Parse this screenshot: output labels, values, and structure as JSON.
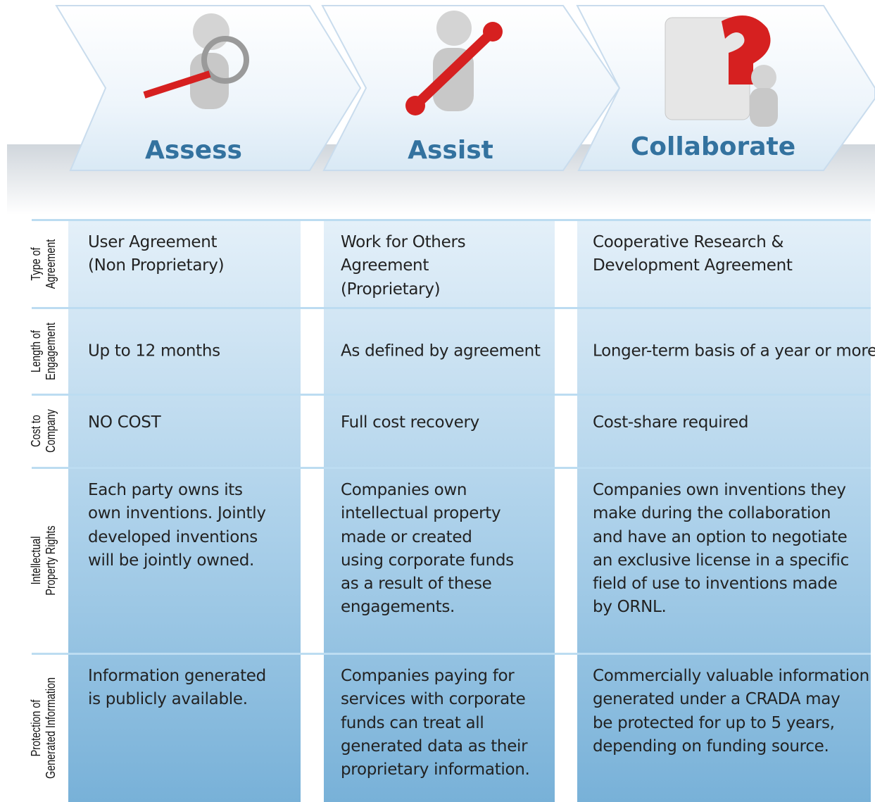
{
  "header": {
    "stages": [
      "Assess",
      "Assist",
      "Collaborate"
    ]
  },
  "table": {
    "rows": [
      {
        "label": [
          "Type of",
          "Agreement"
        ],
        "cells": [
          [
            "User Agreement",
            "(Non Proprietary)"
          ],
          [
            "Work for Others",
            "Agreement",
            "(Proprietary)"
          ],
          [
            "Cooperative Research &",
            "Development Agreement"
          ]
        ]
      },
      {
        "label": [
          "Length of",
          "Engagement"
        ],
        "cells": [
          [
            "Up to 12 months"
          ],
          [
            "As defined by agreement"
          ],
          [
            "Longer-term basis of a year or more"
          ]
        ]
      },
      {
        "label": [
          "Cost to",
          "Company"
        ],
        "cells": [
          [
            "NO COST"
          ],
          [
            "Full cost recovery"
          ],
          [
            "Cost-share required"
          ]
        ]
      },
      {
        "label": [
          "Intellectual",
          "Property Rights"
        ],
        "cells": [
          [
            "Each party owns its",
            "own inventions. Jointly",
            "developed inventions",
            "will be jointly owned."
          ],
          [
            "Companies own",
            "intellectual property",
            "made or created",
            "using corporate funds",
            "as a result of these",
            "engagements."
          ],
          [
            "Companies own inventions they",
            "make during the collaboration",
            "and have an option to negotiate",
            "an exclusive license in a specific",
            "field of use to inventions made",
            "by ORNL."
          ]
        ]
      },
      {
        "label": [
          "Protection of",
          "Generated Information"
        ],
        "cells": [
          [
            "Information generated",
            "is publicly available."
          ],
          [
            "Companies paying for",
            "services with corporate",
            "funds can treat all",
            "generated data as their",
            "proprietary information."
          ],
          [
            "Commercially valuable information",
            "generated under a CRADA may",
            "be protected for up to 5 years,",
            "depending on funding source."
          ]
        ]
      }
    ]
  }
}
